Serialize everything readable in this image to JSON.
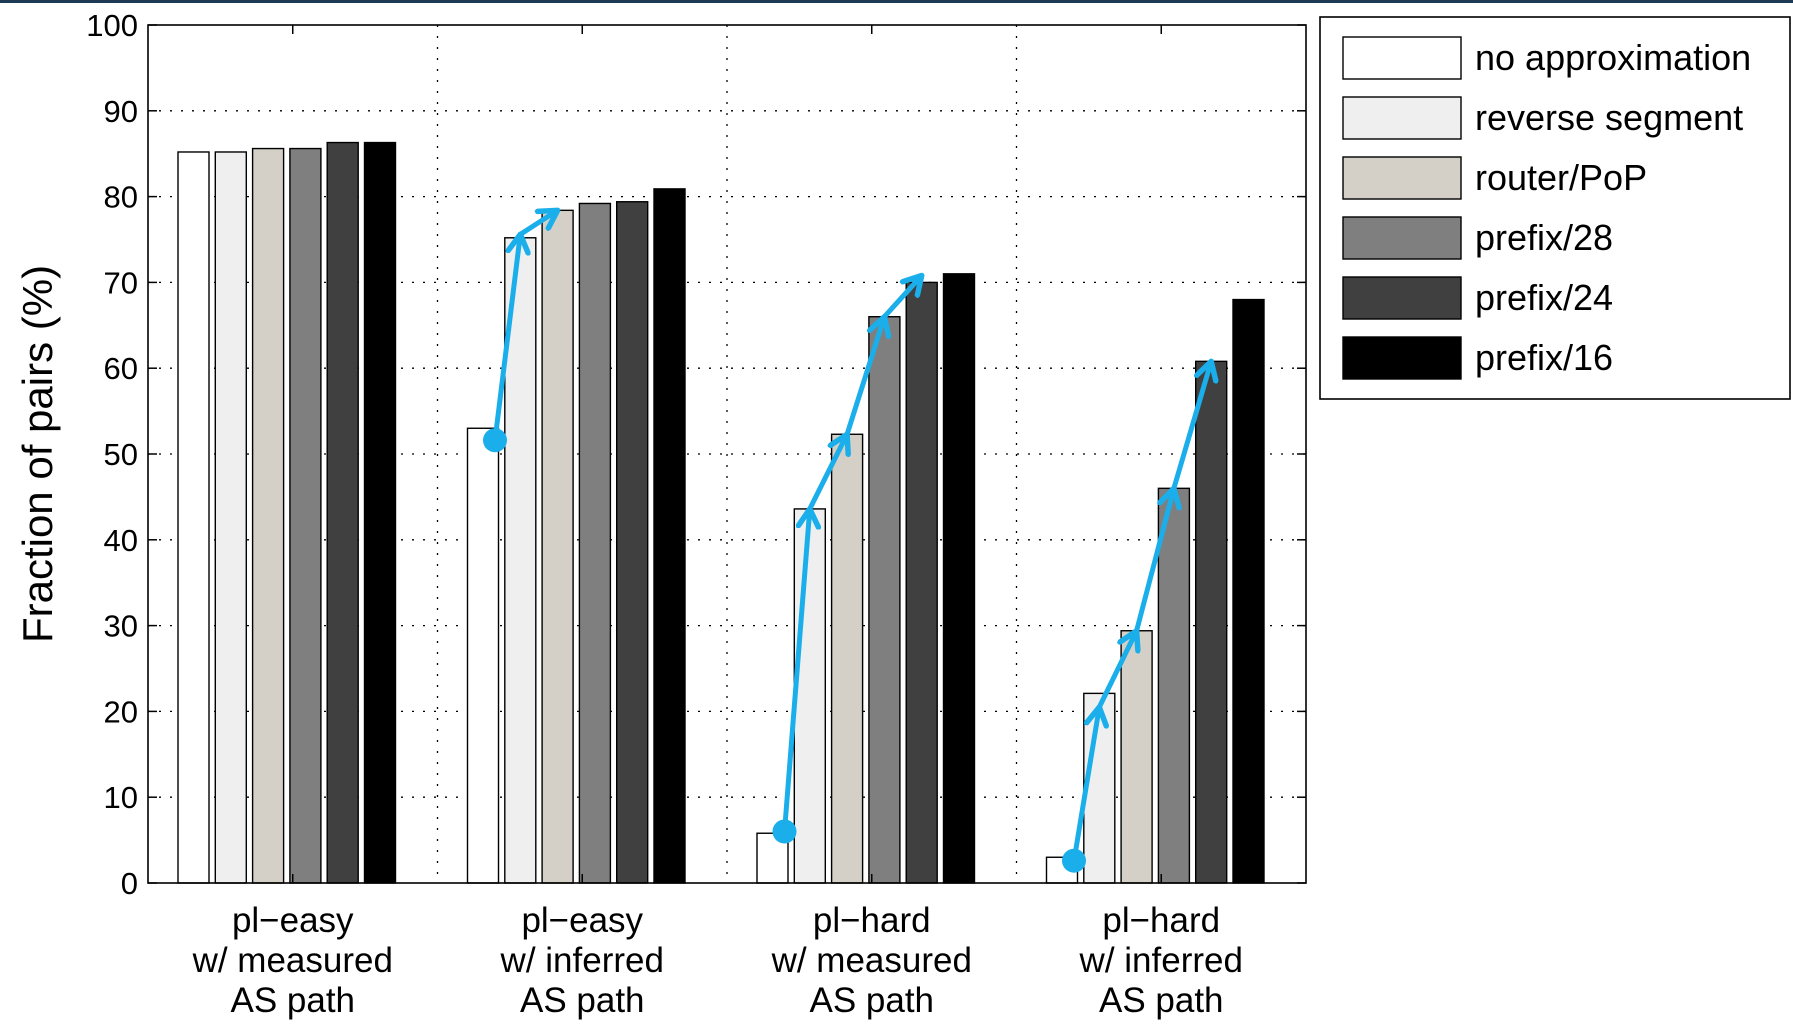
{
  "chart_data": {
    "type": "bar",
    "ylabel": "Fraction of pairs (%)",
    "xlabel": "",
    "ylim": [
      0,
      100
    ],
    "yticks": [
      0,
      10,
      20,
      30,
      40,
      50,
      60,
      70,
      80,
      90,
      100
    ],
    "grid": true,
    "legend_position": "outside-top-right",
    "categories": [
      [
        "pl−easy",
        "w/ measured",
        "AS path"
      ],
      [
        "pl−easy",
        "w/ inferred",
        "AS path"
      ],
      [
        "pl−hard",
        "w/ measured",
        "AS path"
      ],
      [
        "pl−hard",
        "w/ inferred",
        "AS path"
      ]
    ],
    "series": [
      {
        "name": "no approximation",
        "color": "#ffffff",
        "values": [
          85.2,
          53.0,
          5.8,
          3.0
        ]
      },
      {
        "name": "reverse segment",
        "color": "#efefef",
        "values": [
          85.2,
          75.2,
          43.6,
          22.1
        ]
      },
      {
        "name": "router/PoP",
        "color": "#d4d0c8",
        "values": [
          85.6,
          78.4,
          52.3,
          29.4
        ]
      },
      {
        "name": "prefix/28",
        "color": "#7f7f7f",
        "values": [
          85.6,
          79.2,
          66.0,
          46.0
        ]
      },
      {
        "name": "prefix/24",
        "color": "#404040",
        "values": [
          86.3,
          79.4,
          70.0,
          60.8
        ]
      },
      {
        "name": "prefix/16",
        "color": "#000000",
        "values": [
          86.3,
          80.9,
          71.0,
          68.0
        ]
      }
    ],
    "annotations": {
      "arrow_color": "#1aaeeb",
      "arrow_paths": [
        {
          "category_index": 1,
          "points": [
            [
              0,
              51.6
            ],
            [
              1,
              75.6
            ],
            [
              2,
              78.4
            ]
          ]
        },
        {
          "category_index": 2,
          "points": [
            [
              0,
              6.0
            ],
            [
              1,
              43.6
            ],
            [
              2,
              52.3
            ],
            [
              3,
              66.0
            ],
            [
              4,
              70.8
            ]
          ]
        },
        {
          "category_index": 3,
          "points": [
            [
              0,
              2.6
            ],
            [
              1,
              20.5
            ],
            [
              2,
              29.4
            ],
            [
              3,
              46.0
            ],
            [
              4,
              60.8
            ]
          ]
        }
      ]
    }
  }
}
